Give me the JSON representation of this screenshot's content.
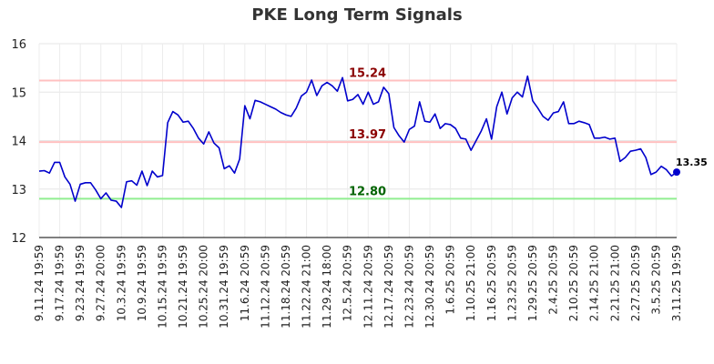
{
  "chart_data": {
    "type": "line",
    "title": "PKE Long Term Signals",
    "xlabel": "",
    "ylabel": "",
    "ylim": [
      12,
      16
    ],
    "yticks": [
      12,
      13,
      14,
      15,
      16
    ],
    "grid": true,
    "x_tick_labels": [
      "9.11.24 19:59",
      "9.17.24 19:59",
      "9.23.24 19:59",
      "9.27.24 20:00",
      "10.3.24 19:59",
      "10.9.24 19:59",
      "10.15.24 19:59",
      "10.21.24 19:59",
      "10.25.24 20:00",
      "10.31.24 19:59",
      "11.6.24 20:59",
      "11.12.24 20:59",
      "11.18.24 20:59",
      "11.22.24 21:00",
      "11.29.24 18:00",
      "12.5.24 20:59",
      "12.11.24 20:59",
      "12.17.24 20:59",
      "12.23.24 20:59",
      "12.30.24 20:59",
      "1.6.25 20:59",
      "1.10.25 21:00",
      "1.16.25 20:59",
      "1.23.25 20:59",
      "1.29.25 20:59",
      "2.4.25 20:59",
      "2.10.25 20:59",
      "2.14.25 21:00",
      "2.21.25 21:00",
      "2.27.25 20:59",
      "3.5.25 20:59",
      "3.11.25 19:59"
    ],
    "reference_lines": [
      {
        "value": 15.24,
        "label": "15.24",
        "line_color": "#ffc0c0",
        "label_color": "#8b0000"
      },
      {
        "value": 13.97,
        "label": "13.97",
        "line_color": "#ffc0c0",
        "label_color": "#8b0000"
      },
      {
        "value": 12.8,
        "label": "12.80",
        "line_color": "#90ee90",
        "label_color": "#006400"
      }
    ],
    "series": [
      {
        "color": "#0000cc",
        "values": [
          13.37,
          13.38,
          13.33,
          13.55,
          13.55,
          13.25,
          13.1,
          12.75,
          13.1,
          13.13,
          13.13,
          12.98,
          12.8,
          12.92,
          12.77,
          12.75,
          12.62,
          13.15,
          13.17,
          13.08,
          13.37,
          13.07,
          13.37,
          13.25,
          13.28,
          14.37,
          14.6,
          14.53,
          14.38,
          14.4,
          14.25,
          14.05,
          13.93,
          14.18,
          13.95,
          13.85,
          13.42,
          13.48,
          13.33,
          13.62,
          14.72,
          14.45,
          14.83,
          14.8,
          14.75,
          14.7,
          14.65,
          14.58,
          14.53,
          14.5,
          14.67,
          14.92,
          15.0,
          15.25,
          14.93,
          15.13,
          15.2,
          15.13,
          15.02,
          15.3,
          14.82,
          14.85,
          14.95,
          14.75,
          15.0,
          14.75,
          14.8,
          15.1,
          14.97,
          14.27,
          14.1,
          13.97,
          14.23,
          14.3,
          14.8,
          14.4,
          14.38,
          14.55,
          14.25,
          14.35,
          14.33,
          14.25,
          14.05,
          14.03,
          13.8,
          14.0,
          14.2,
          14.45,
          14.03,
          14.7,
          15.0,
          14.55,
          14.88,
          15.0,
          14.9,
          15.33,
          14.82,
          14.67,
          14.5,
          14.42,
          14.57,
          14.6,
          14.8,
          14.35,
          14.35,
          14.4,
          14.37,
          14.33,
          14.05,
          14.05,
          14.07,
          14.03,
          14.05,
          13.57,
          13.65,
          13.78,
          13.8,
          13.83,
          13.65,
          13.3,
          13.35,
          13.47,
          13.4,
          13.27,
          13.35
        ]
      }
    ],
    "last_value_label": "13.35"
  }
}
